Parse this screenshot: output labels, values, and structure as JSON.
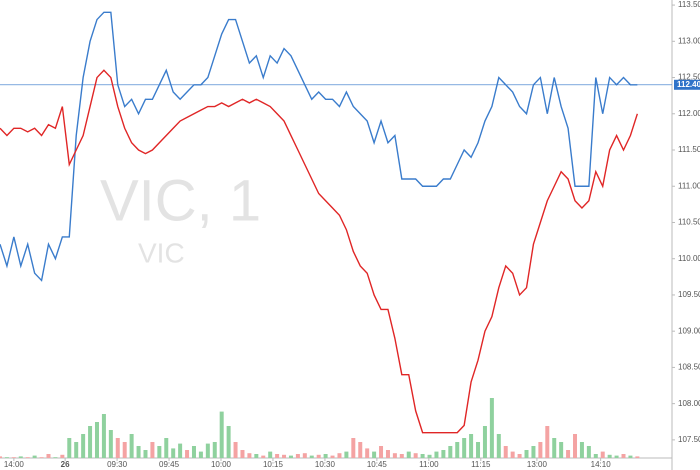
{
  "chart_data": {
    "type": "line",
    "watermark": "VIC, 1",
    "watermark_sub": "VIC",
    "xlim": [
      0,
      97
    ],
    "xticks": [
      {
        "value": 2,
        "label": "14:00"
      },
      {
        "value": 9.4,
        "label": "26"
      },
      {
        "value": 16.9,
        "label": "09:30"
      },
      {
        "value": 24.4,
        "label": "09:45"
      },
      {
        "value": 31.9,
        "label": "10:00"
      },
      {
        "value": 39.4,
        "label": "10:15"
      },
      {
        "value": 46.9,
        "label": "10:30"
      },
      {
        "value": 54.4,
        "label": "10:45"
      },
      {
        "value": 61.9,
        "label": "11:00"
      },
      {
        "value": 69.4,
        "label": "11:15"
      },
      {
        "value": 77.5,
        "label": "13:00"
      },
      {
        "value": 86.7,
        "label": "14:10"
      }
    ],
    "ylim": [
      107.25,
      113.57
    ],
    "yticks": [
      {
        "value": 107.5,
        "label": "107.50"
      },
      {
        "value": 108,
        "label": "108.00"
      },
      {
        "value": 108.5,
        "label": "108.50"
      },
      {
        "value": 109,
        "label": "109.00"
      },
      {
        "value": 109.5,
        "label": "109.50"
      },
      {
        "value": 110,
        "label": "110.00"
      },
      {
        "value": 110.5,
        "label": "110.50"
      },
      {
        "value": 111,
        "label": "111.00"
      },
      {
        "value": 111.5,
        "label": "111.50"
      },
      {
        "value": 112,
        "label": "112.00"
      },
      {
        "value": 112.5,
        "label": "112.50"
      },
      {
        "value": 113,
        "label": "113.00"
      },
      {
        "value": 113.5,
        "label": "113.50"
      }
    ],
    "last_price": {
      "value": 112.4,
      "label": "112.40",
      "color": "#2f73c9"
    },
    "grid": false,
    "series": [
      {
        "color": "#3a7ccc",
        "values": [
          110.2,
          109.9,
          110.3,
          109.9,
          110.2,
          109.8,
          109.7,
          110.2,
          110.0,
          110.3,
          110.3,
          111.7,
          112.5,
          113.0,
          113.3,
          113.4,
          113.4,
          112.4,
          112.1,
          112.2,
          112.0,
          112.2,
          112.2,
          112.4,
          112.6,
          112.3,
          112.2,
          112.3,
          112.4,
          112.4,
          112.5,
          112.8,
          113.1,
          113.3,
          113.3,
          113.0,
          112.7,
          112.8,
          112.5,
          112.8,
          112.7,
          112.9,
          112.8,
          112.6,
          112.4,
          112.2,
          112.3,
          112.2,
          112.2,
          112.1,
          112.3,
          112.1,
          112.0,
          111.9,
          111.6,
          111.9,
          111.6,
          111.7,
          111.1,
          111.1,
          111.1,
          111.0,
          111.0,
          111.0,
          111.1,
          111.1,
          111.3,
          111.5,
          111.4,
          111.6,
          111.9,
          112.1,
          112.5,
          112.4,
          112.3,
          112.1,
          112.0,
          112.4,
          112.5,
          112.0,
          112.5,
          112.1,
          111.8,
          111.0,
          111.0,
          111.0,
          112.5,
          112.0,
          112.5,
          112.4,
          112.5,
          112.4,
          112.4
        ]
      },
      {
        "color": "#e02626",
        "values": [
          111.8,
          111.7,
          111.8,
          111.8,
          111.75,
          111.8,
          111.7,
          111.85,
          111.8,
          112.1,
          111.3,
          111.5,
          111.7,
          112.1,
          112.5,
          112.6,
          112.5,
          112.1,
          111.8,
          111.6,
          111.5,
          111.45,
          111.5,
          111.6,
          111.7,
          111.8,
          111.9,
          111.95,
          112.0,
          112.05,
          112.1,
          112.1,
          112.15,
          112.1,
          112.15,
          112.2,
          112.15,
          112.2,
          112.15,
          112.1,
          112.0,
          111.9,
          111.7,
          111.5,
          111.3,
          111.1,
          110.9,
          110.8,
          110.7,
          110.6,
          110.4,
          110.1,
          109.9,
          109.8,
          109.5,
          109.3,
          109.3,
          108.9,
          108.4,
          108.4,
          107.9,
          107.6,
          107.6,
          107.6,
          107.6,
          107.6,
          107.6,
          107.7,
          108.3,
          108.6,
          109.0,
          109.2,
          109.6,
          109.9,
          109.8,
          109.5,
          109.6,
          110.2,
          110.5,
          110.8,
          111.0,
          111.2,
          111.1,
          110.8,
          110.7,
          110.8,
          111.2,
          111.0,
          111.5,
          111.7,
          111.5,
          111.7,
          112.0
        ]
      }
    ],
    "volume": {
      "vlim": [
        0,
        100
      ],
      "values": [
        2,
        1,
        1,
        2,
        1,
        3,
        1,
        5,
        1,
        4,
        25,
        20,
        30,
        40,
        45,
        55,
        35,
        25,
        20,
        30,
        15,
        10,
        20,
        15,
        25,
        12,
        18,
        10,
        15,
        8,
        18,
        20,
        58,
        40,
        20,
        10,
        6,
        5,
        3,
        8,
        5,
        4,
        3,
        5,
        6,
        3,
        4,
        5,
        3,
        6,
        8,
        25,
        20,
        12,
        8,
        15,
        10,
        6,
        5,
        8,
        6,
        5,
        4,
        8,
        10,
        15,
        20,
        25,
        30,
        20,
        40,
        75,
        30,
        15,
        8,
        5,
        10,
        15,
        20,
        40,
        25,
        20,
        10,
        30,
        20,
        15,
        5,
        8,
        4,
        3,
        5,
        3,
        2
      ],
      "colors": [
        "#f4a3a3",
        "#8fd19e",
        "#f4a3a3",
        "#8fd19e",
        "#f4a3a3",
        "#8fd19e",
        "#f4a3a3",
        "#f4a3a3",
        "#8fd19e",
        "#f4a3a3",
        "#8fd19e",
        "#8fd19e",
        "#8fd19e",
        "#8fd19e",
        "#8fd19e",
        "#8fd19e",
        "#8fd19e",
        "#f4a3a3",
        "#f4a3a3",
        "#8fd19e",
        "#8fd19e",
        "#8fd19e",
        "#f4a3a3",
        "#8fd19e",
        "#8fd19e",
        "#8fd19e",
        "#8fd19e",
        "#f4a3a3",
        "#8fd19e",
        "#8fd19e",
        "#8fd19e",
        "#8fd19e",
        "#8fd19e",
        "#8fd19e",
        "#f4a3a3",
        "#f4a3a3",
        "#f4a3a3",
        "#8fd19e",
        "#f4a3a3",
        "#8fd19e",
        "#f4a3a3",
        "#f4a3a3",
        "#8fd19e",
        "#f4a3a3",
        "#f4a3a3",
        "#8fd19e",
        "#f4a3a3",
        "#8fd19e",
        "#f4a3a3",
        "#f4a3a3",
        "#8fd19e",
        "#f4a3a3",
        "#f4a3a3",
        "#f4a3a3",
        "#8fd19e",
        "#f4a3a3",
        "#f4a3a3",
        "#f4a3a3",
        "#f4a3a3",
        "#8fd19e",
        "#f4a3a3",
        "#8fd19e",
        "#8fd19e",
        "#8fd19e",
        "#8fd19e",
        "#8fd19e",
        "#8fd19e",
        "#8fd19e",
        "#8fd19e",
        "#8fd19e",
        "#8fd19e",
        "#8fd19e",
        "#8fd19e",
        "#f4a3a3",
        "#f4a3a3",
        "#f4a3a3",
        "#8fd19e",
        "#8fd19e",
        "#f4a3a3",
        "#f4a3a3",
        "#8fd19e",
        "#8fd19e",
        "#f4a3a3",
        "#f4a3a3",
        "#8fd19e",
        "#8fd19e",
        "#8fd19e",
        "#f4a3a3",
        "#8fd19e",
        "#8fd19e",
        "#f4a3a3",
        "#8fd19e",
        "#f4a3a3"
      ]
    }
  }
}
